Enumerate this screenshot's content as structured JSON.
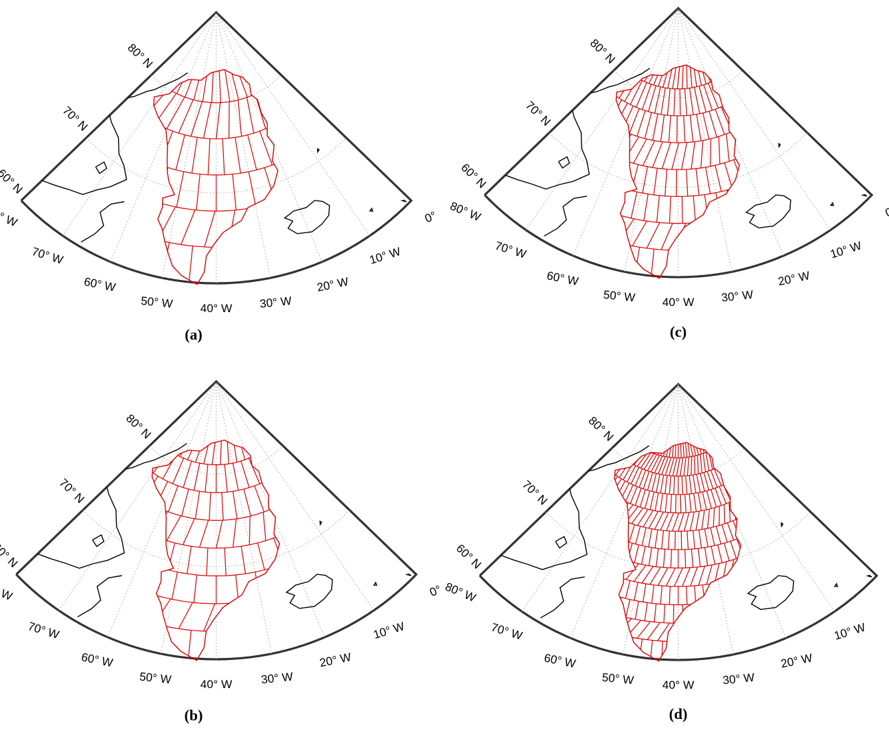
{
  "panels": [
    {
      "id": "a",
      "caption": "(a)",
      "lat_spacing_deg": 4,
      "lon_spacing_deg": 5
    },
    {
      "id": "b",
      "caption": "(b)",
      "lat_spacing_deg": 3,
      "lon_spacing_deg": 5
    },
    {
      "id": "c",
      "caption": "(c)",
      "lat_spacing_deg": 3,
      "lon_spacing_deg": 3
    },
    {
      "id": "d",
      "caption": "(d)",
      "lat_spacing_deg": 2,
      "lon_spacing_deg": 2
    }
  ],
  "map": {
    "projection": "conic sector (polar)",
    "region": "Greenland",
    "lat_range": [
      60,
      90
    ],
    "lon_range": [
      -80,
      0
    ],
    "lat_labels": [
      "60° N",
      "70° N",
      "80° N"
    ],
    "lon_labels": [
      "80° W",
      "70° W",
      "60° W",
      "50° W",
      "40° W",
      "30° W",
      "20° W",
      "10° W",
      "0°"
    ],
    "graticule_style": "dotted gray",
    "coastline_color": "#000000",
    "grid_overlay_color": "#dd0000"
  }
}
